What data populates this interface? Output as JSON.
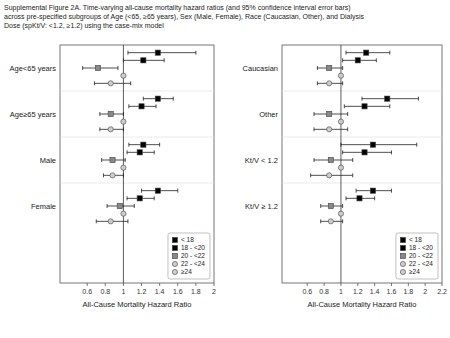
{
  "chart_data": [
    {
      "type": "forest",
      "title": [
        "Supplemental Figure 2A. Time-varying all-cause mortality hazard ratios (and 95% confidence interval error bars)",
        "across pre-specified subgroups of Age (<65, ≥65 years), Sex (Male, Female), Race (Caucasian, Other), and Dialysis",
        "Dose (spKt/V: <1.2, ≥1.2) using the case-mix model"
      ],
      "categories": [
        "Age<65 years",
        "Age≥65 years",
        "Male",
        "Female"
      ],
      "xlabel": "All-Cause Mortality Hazard Ratio",
      "xlim": [
        0.3,
        2.0
      ],
      "xticks": [
        0.6,
        0.8,
        1,
        1.2,
        1.4,
        1.6,
        1.8,
        2
      ],
      "ref_line": 1,
      "legend": "lower right",
      "series": [
        {
          "name": "< 18",
          "color": "black",
          "marker": "square",
          "values": [
            1.38,
            1.38,
            1.22,
            1.38
          ],
          "lower": [
            1.05,
            1.22,
            1.06,
            1.2
          ],
          "upper": [
            1.8,
            1.55,
            1.4,
            1.6
          ]
        },
        {
          "name": "18 - <20",
          "color": "black",
          "marker": "square",
          "values": [
            1.22,
            1.2,
            1.18,
            1.18
          ],
          "lower": [
            1.0,
            1.06,
            1.04,
            1.04
          ],
          "upper": [
            1.45,
            1.36,
            1.34,
            1.34
          ]
        },
        {
          "name": "20 - <22",
          "color": "#888888",
          "marker": "square",
          "values": [
            0.72,
            0.86,
            0.88,
            0.96
          ],
          "lower": [
            0.55,
            0.74,
            0.76,
            0.82
          ],
          "upper": [
            0.94,
            1.0,
            1.02,
            1.12
          ]
        },
        {
          "name": "22 - <24",
          "color": "#cccccc",
          "marker": "circle",
          "values": [
            1.0,
            1.0,
            1.0,
            1.0
          ]
        },
        {
          "name": "≥24",
          "color": "#cccccc",
          "marker": "circle",
          "values": [
            0.86,
            0.86,
            0.88,
            0.86
          ],
          "lower": [
            0.68,
            0.74,
            0.78,
            0.7
          ],
          "upper": [
            1.08,
            1.0,
            1.0,
            1.05
          ]
        }
      ]
    },
    {
      "type": "forest",
      "categories": [
        "Caucasian",
        "Other",
        "Kt/V < 1.2",
        "Kt/V ≥ 1.2"
      ],
      "xlabel": "All-Cause Mortality Hazard Ratio",
      "xlim": [
        0.3,
        2.2
      ],
      "xticks": [
        0.6,
        0.8,
        1,
        1.2,
        1.4,
        1.6,
        1.8,
        2,
        2.2
      ],
      "ref_line": 1,
      "legend": "lower right",
      "series": [
        {
          "name": "< 18",
          "color": "black",
          "marker": "square",
          "values": [
            1.3,
            1.55,
            1.38,
            1.38
          ],
          "lower": [
            1.06,
            1.25,
            1.0,
            1.18
          ],
          "upper": [
            1.58,
            1.92,
            1.9,
            1.6
          ]
        },
        {
          "name": "18 - <20",
          "color": "black",
          "marker": "square",
          "values": [
            1.2,
            1.28,
            1.28,
            1.22
          ],
          "lower": [
            1.02,
            1.04,
            1.02,
            1.06
          ],
          "upper": [
            1.42,
            1.58,
            1.6,
            1.4
          ]
        },
        {
          "name": "20 - <22",
          "color": "#888888",
          "marker": "square",
          "values": [
            0.86,
            0.86,
            0.88,
            0.88
          ],
          "lower": [
            0.72,
            0.68,
            0.68,
            0.76
          ],
          "upper": [
            1.02,
            1.08,
            1.14,
            1.02
          ]
        },
        {
          "name": "22 - <24",
          "color": "#cccccc",
          "marker": "circle",
          "values": [
            1.0,
            1.0,
            1.0,
            1.0
          ]
        },
        {
          "name": "≥24",
          "color": "#cccccc",
          "marker": "circle",
          "values": [
            0.86,
            0.86,
            0.86,
            0.88
          ],
          "lower": [
            0.72,
            0.68,
            0.64,
            0.76
          ],
          "upper": [
            1.02,
            1.08,
            1.14,
            1.02
          ]
        }
      ]
    }
  ]
}
